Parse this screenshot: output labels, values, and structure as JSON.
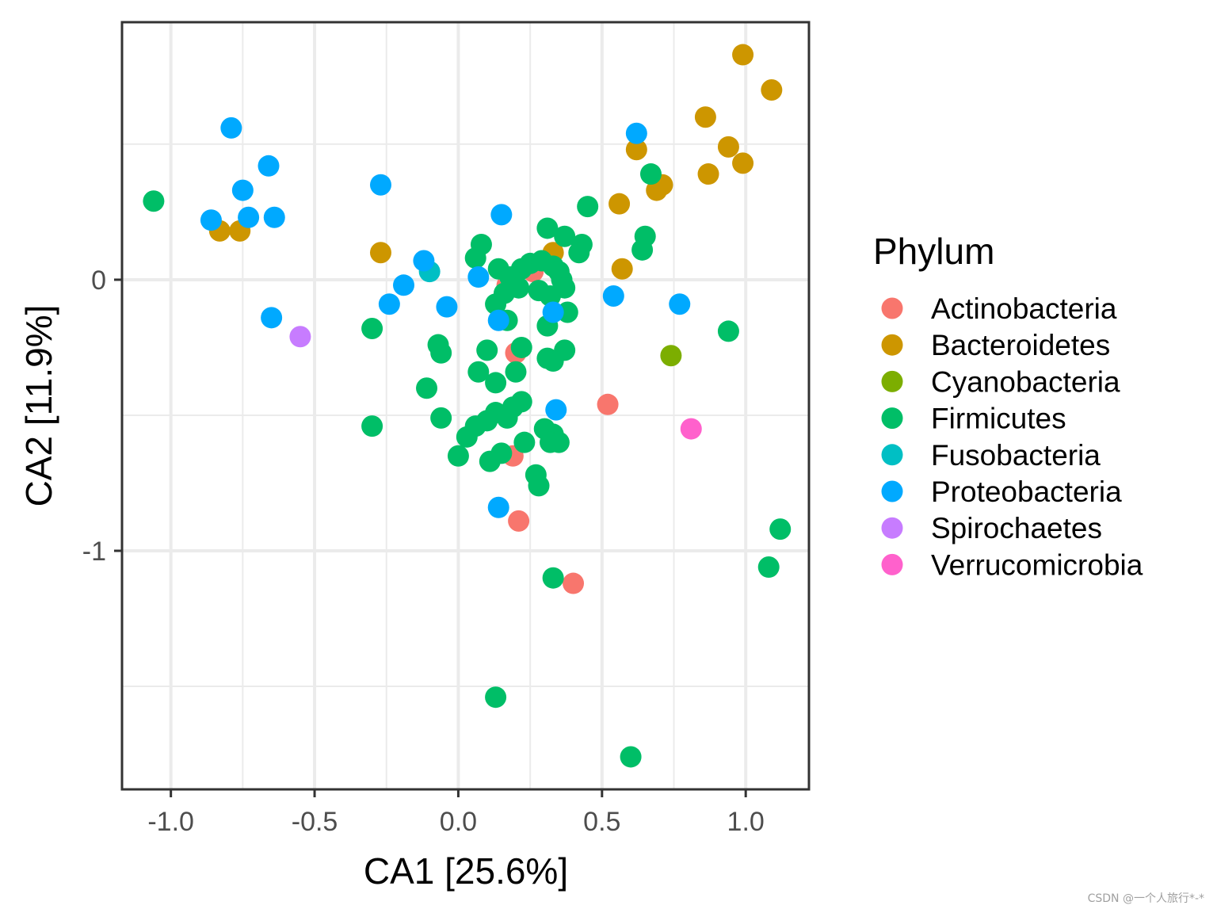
{
  "chart_data": {
    "type": "scatter",
    "title": "",
    "xlabel": "CA1   [25.6%]",
    "ylabel": "CA2   [11.9%]",
    "xlim": [
      -1.17,
      1.22
    ],
    "ylim": [
      -1.88,
      0.95
    ],
    "x_ticks": [
      -1.0,
      -0.5,
      0.0,
      0.5,
      1.0
    ],
    "x_tick_labels": [
      "-1.0",
      "-0.5",
      "0.0",
      "0.5",
      "1.0"
    ],
    "y_ticks": [
      0,
      -1
    ],
    "y_tick_labels": [
      "0",
      "-1"
    ],
    "y_minor_ticks": [
      0.5,
      -0.5,
      -1.5
    ],
    "grid": true,
    "legend": {
      "title": "Phylum",
      "placement": "right",
      "entries": [
        "Actinobacteria",
        "Bacteroidetes",
        "Cyanobacteria",
        "Firmicutes",
        "Fusobacteria",
        "Proteobacteria",
        "Spirochaetes",
        "Verrucomicrobia"
      ]
    },
    "colors": {
      "Actinobacteria": "#F8766D",
      "Bacteroidetes": "#CD9600",
      "Cyanobacteria": "#7CAE00",
      "Firmicutes": "#00BE67",
      "Fusobacteria": "#00BFC4",
      "Proteobacteria": "#00A9FF",
      "Spirochaetes": "#C77CFF",
      "Verrucomicrobia": "#FF61CC"
    },
    "series": [
      {
        "name": "Actinobacteria",
        "points": [
          [
            0.26,
            0.03
          ],
          [
            0.2,
            -0.27
          ],
          [
            0.19,
            -0.65
          ],
          [
            0.21,
            -0.89
          ],
          [
            0.4,
            -1.12
          ],
          [
            0.52,
            -0.46
          ],
          [
            0.17,
            -0.02
          ]
        ]
      },
      {
        "name": "Bacteroidetes",
        "points": [
          [
            0.99,
            0.83
          ],
          [
            1.09,
            0.7
          ],
          [
            0.86,
            0.6
          ],
          [
            0.94,
            0.49
          ],
          [
            0.99,
            0.43
          ],
          [
            0.62,
            0.48
          ],
          [
            0.87,
            0.39
          ],
          [
            0.71,
            0.35
          ],
          [
            0.69,
            0.33
          ],
          [
            0.56,
            0.28
          ],
          [
            0.57,
            0.04
          ],
          [
            0.33,
            0.1
          ],
          [
            -0.27,
            0.1
          ],
          [
            -0.76,
            0.18
          ],
          [
            -0.83,
            0.18
          ]
        ]
      },
      {
        "name": "Cyanobacteria",
        "points": [
          [
            0.74,
            -0.28
          ]
        ]
      },
      {
        "name": "Firmicutes",
        "points": [
          [
            -1.06,
            0.29
          ],
          [
            0.67,
            0.39
          ],
          [
            0.45,
            0.27
          ],
          [
            0.31,
            0.19
          ],
          [
            0.37,
            0.16
          ],
          [
            0.43,
            0.13
          ],
          [
            0.42,
            0.1
          ],
          [
            0.65,
            0.16
          ],
          [
            0.64,
            0.11
          ],
          [
            0.08,
            0.13
          ],
          [
            0.06,
            0.08
          ],
          [
            0.14,
            0.04
          ],
          [
            0.22,
            0.04
          ],
          [
            0.25,
            0.06
          ],
          [
            0.29,
            0.07
          ],
          [
            0.33,
            0.05
          ],
          [
            0.35,
            0.03
          ],
          [
            0.36,
            0.0
          ],
          [
            0.18,
            0.01
          ],
          [
            0.21,
            -0.03
          ],
          [
            0.16,
            -0.05
          ],
          [
            0.28,
            -0.04
          ],
          [
            0.32,
            -0.06
          ],
          [
            0.37,
            -0.03
          ],
          [
            0.13,
            -0.09
          ],
          [
            0.38,
            -0.12
          ],
          [
            0.17,
            -0.15
          ],
          [
            0.31,
            -0.17
          ],
          [
            -0.3,
            -0.18
          ],
          [
            -0.07,
            -0.24
          ],
          [
            -0.06,
            -0.27
          ],
          [
            0.1,
            -0.26
          ],
          [
            0.22,
            -0.25
          ],
          [
            0.37,
            -0.26
          ],
          [
            0.31,
            -0.29
          ],
          [
            0.33,
            -0.3
          ],
          [
            0.94,
            -0.19
          ],
          [
            0.07,
            -0.34
          ],
          [
            0.2,
            -0.34
          ],
          [
            0.13,
            -0.38
          ],
          [
            -0.11,
            -0.4
          ],
          [
            0.22,
            -0.45
          ],
          [
            0.19,
            -0.47
          ],
          [
            0.13,
            -0.49
          ],
          [
            0.17,
            -0.51
          ],
          [
            0.1,
            -0.52
          ],
          [
            -0.06,
            -0.51
          ],
          [
            0.06,
            -0.54
          ],
          [
            0.03,
            -0.58
          ],
          [
            -0.3,
            -0.54
          ],
          [
            0.3,
            -0.55
          ],
          [
            0.33,
            -0.57
          ],
          [
            0.23,
            -0.6
          ],
          [
            0.32,
            -0.6
          ],
          [
            0.35,
            -0.6
          ],
          [
            0.15,
            -0.64
          ],
          [
            0.0,
            -0.65
          ],
          [
            0.11,
            -0.67
          ],
          [
            0.27,
            -0.72
          ],
          [
            0.28,
            -0.76
          ],
          [
            1.12,
            -0.92
          ],
          [
            1.08,
            -1.06
          ],
          [
            0.33,
            -1.1
          ],
          [
            0.13,
            -1.54
          ],
          [
            0.6,
            -1.76
          ]
        ]
      },
      {
        "name": "Fusobacteria",
        "points": [
          [
            -0.1,
            0.03
          ]
        ]
      },
      {
        "name": "Proteobacteria",
        "points": [
          [
            -0.79,
            0.56
          ],
          [
            0.62,
            0.54
          ],
          [
            -0.66,
            0.42
          ],
          [
            -0.27,
            0.35
          ],
          [
            -0.75,
            0.33
          ],
          [
            0.15,
            0.24
          ],
          [
            -0.86,
            0.22
          ],
          [
            -0.73,
            0.23
          ],
          [
            -0.64,
            0.23
          ],
          [
            -0.12,
            0.07
          ],
          [
            -0.19,
            -0.02
          ],
          [
            0.07,
            0.01
          ],
          [
            -0.24,
            -0.09
          ],
          [
            -0.04,
            -0.1
          ],
          [
            0.33,
            -0.12
          ],
          [
            0.14,
            -0.15
          ],
          [
            0.54,
            -0.06
          ],
          [
            0.77,
            -0.09
          ],
          [
            -0.65,
            -0.14
          ],
          [
            0.34,
            -0.48
          ],
          [
            0.14,
            -0.84
          ]
        ]
      },
      {
        "name": "Spirochaetes",
        "points": [
          [
            -0.55,
            -0.21
          ]
        ]
      },
      {
        "name": "Verrucomicrobia",
        "points": [
          [
            0.81,
            -0.55
          ]
        ]
      }
    ]
  },
  "watermark": "CSDN @一个人旅行*-*"
}
